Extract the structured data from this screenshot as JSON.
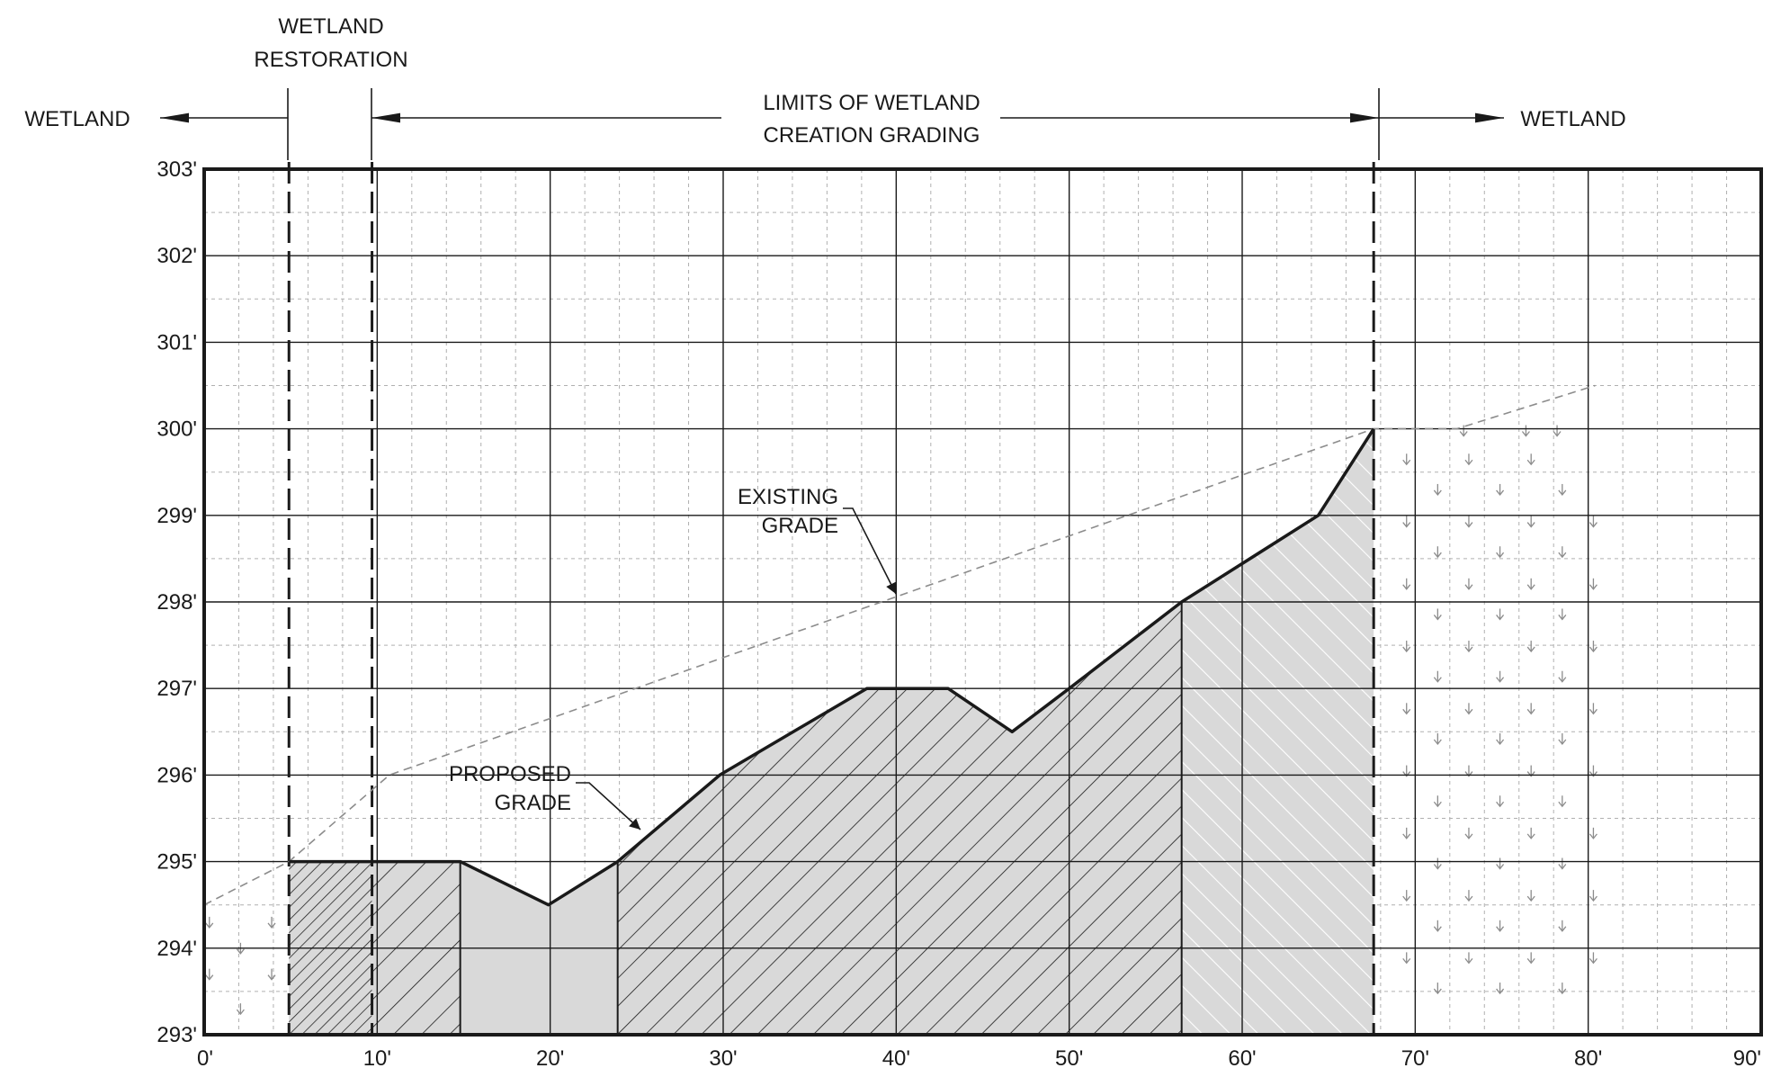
{
  "header": {
    "left_label": "WETLAND",
    "restoration_line1": "WETLAND",
    "restoration_line2": "RESTORATION",
    "limits_line1": "LIMITS OF WETLAND",
    "limits_line2": "CREATION GRADING",
    "right_label": "WETLAND"
  },
  "annotations": {
    "existing_line1": "EXISTING",
    "existing_line2": "GRADE",
    "proposed_line1": "PROPOSED",
    "proposed_line2": "GRADE"
  },
  "chart_data": {
    "type": "cross-section",
    "x_unit": "ft",
    "y_unit": "ft elevation",
    "xlim": [
      0,
      90
    ],
    "ylim": [
      293,
      303
    ],
    "x_ticks": [
      "0'",
      "10'",
      "20'",
      "30'",
      "40'",
      "50'",
      "60'",
      "70'",
      "80'",
      "90'"
    ],
    "y_ticks": [
      "293'",
      "294'",
      "295'",
      "296'",
      "297'",
      "298'",
      "299'",
      "300'",
      "301'",
      "302'",
      "303'"
    ],
    "grid": true,
    "restoration_limits_x": [
      4.9,
      9.7
    ],
    "grading_limits_x": [
      9.7,
      67.6
    ],
    "existing_grade": [
      [
        0,
        294.5
      ],
      [
        4.9,
        295.0
      ],
      [
        10.7,
        296.0
      ],
      [
        67.6,
        300.0
      ],
      [
        72.4,
        300.0
      ],
      [
        80.4,
        300.5
      ]
    ],
    "proposed_grade": [
      [
        4.9,
        295.0
      ],
      [
        14.8,
        295.0
      ],
      [
        19.9,
        294.5
      ],
      [
        23.9,
        295.0
      ],
      [
        29.8,
        296.0
      ],
      [
        38.3,
        297.0
      ],
      [
        43.0,
        297.0
      ],
      [
        46.7,
        296.5
      ],
      [
        50.0,
        297.0
      ],
      [
        56.5,
        298.0
      ],
      [
        64.4,
        299.0
      ],
      [
        67.6,
        300.0
      ]
    ],
    "zones": [
      {
        "name": "wetland-left",
        "pattern": "wetland"
      },
      {
        "name": "restoration",
        "pattern": "dense-hatch"
      },
      {
        "name": "cut-hatch-1",
        "pattern": "hatch"
      },
      {
        "name": "fill-plain",
        "pattern": "plain"
      },
      {
        "name": "cut-hatch-2",
        "pattern": "hatch"
      },
      {
        "name": "fill-white-hatch",
        "pattern": "white-hatch"
      },
      {
        "name": "wetland-right",
        "pattern": "wetland"
      }
    ],
    "colors": {
      "fill": "#d9d9d9",
      "line": "#1a1a1a",
      "existing": "#8c8c8c",
      "grid": "#b0b0b0"
    }
  }
}
